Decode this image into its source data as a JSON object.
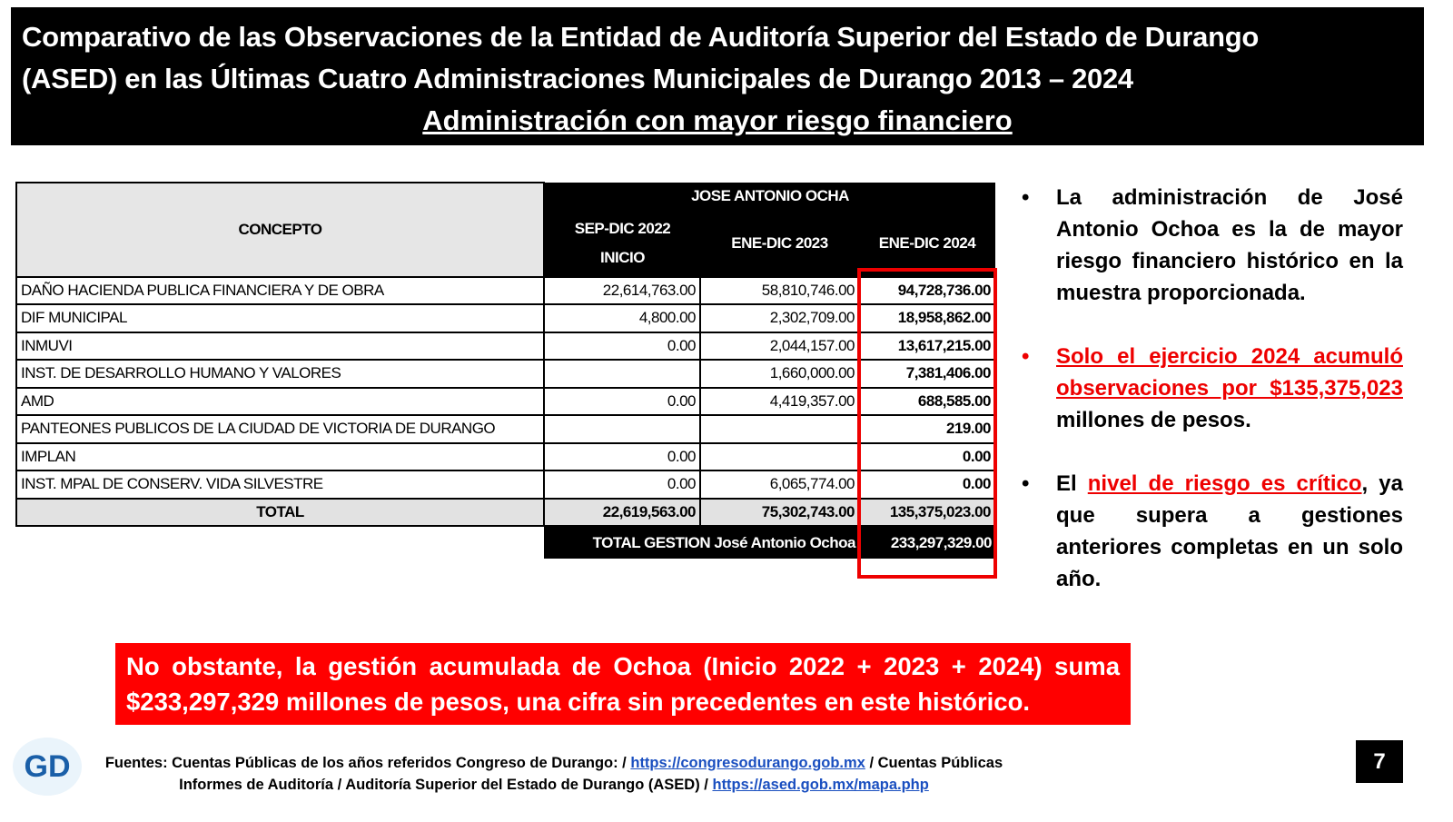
{
  "header": {
    "title_lines": [
      "Comparativo de las Observaciones de la Entidad de Auditoría Superior del Estado de Durango",
      "(ASED) en las Últimas Cuatro Administraciones Municipales de Durango 2013 – 2024"
    ],
    "subtitle": "Administración con mayor riesgo financiero"
  },
  "table": {
    "concept_header": "CONCEPTO",
    "group_header": "JOSE ANTONIO OCHA",
    "columns": [
      [
        "SEP-DIC 2022",
        "INICIO"
      ],
      [
        "ENE-DIC 2023"
      ],
      [
        "ENE-DIC 2024"
      ]
    ],
    "rows": [
      [
        "DAÑO HACIENDA PUBLICA FINANCIERA Y DE OBRA",
        "22,614,763.00",
        "58,810,746.00",
        "94,728,736.00"
      ],
      [
        "DIF MUNICIPAL",
        "4,800.00",
        "2,302,709.00",
        "18,958,862.00"
      ],
      [
        "INMUVI",
        "0.00",
        "2,044,157.00",
        "13,617,215.00"
      ],
      [
        "INST. DE DESARROLLO HUMANO Y VALORES",
        null,
        "1,660,000.00",
        "7,381,406.00"
      ],
      [
        "AMD",
        "0.00",
        "4,419,357.00",
        "688,585.00"
      ],
      [
        "PANTEONES PUBLICOS DE LA CIUDAD DE VICTORIA DE DURANGO",
        null,
        null,
        "219.00"
      ],
      [
        "IMPLAN",
        "0.00",
        null,
        "0.00"
      ],
      [
        "INST. MPAL DE CONSERV. VIDA SILVESTRE",
        "0.00",
        "6,065,774.00",
        "0.00"
      ]
    ],
    "total_row": [
      "TOTAL",
      "22,619,563.00",
      "75,302,743.00",
      "135,375,023.00"
    ],
    "grand_total": {
      "label": "TOTAL GESTION José Antonio Ochoa",
      "value": "233,297,329.00"
    }
  },
  "bullets": [
    [
      {
        "text": "La administración de José Antonio Ochoa es la de mayor riesgo financiero histórico en la muestra proporcionada.",
        "highlight": false
      }
    ],
    [
      {
        "text": "Solo el ejercicio 2024 acumuló observaciones por $135,375,023",
        "highlight": true
      },
      {
        "text": " millones de pesos.",
        "highlight": false
      }
    ],
    [
      {
        "text": "El ",
        "highlight": false
      },
      {
        "text": "nivel de riesgo es crítico",
        "highlight": true
      },
      {
        "text": ", ya que supera a gestiones anteriores completas en un solo año.",
        "highlight": false
      }
    ]
  ],
  "callout": "No obstante, la gestión acumulada de Ochoa (Inicio 2022 + 2023 + 2024) suma $233,297,329 millones de pesos, una cifra sin precedentes en este histórico.",
  "footer": {
    "logo": "GD",
    "lines": [
      [
        {
          "text": "Fuentes: Cuentas Públicas de los años referidos Congreso de Durango: / ",
          "link": false
        },
        {
          "text": "https://congresodurango.gob.mx",
          "link": true
        },
        {
          "text": " / Cuentas Públicas",
          "link": false
        }
      ],
      [
        {
          "text": "Informes de Auditoría / Auditoría Superior del Estado de Durango (ASED) / ",
          "link": false
        },
        {
          "text": "https://ased.gob.mx/mapa.php",
          "link": true
        }
      ]
    ],
    "page_number": "7"
  }
}
